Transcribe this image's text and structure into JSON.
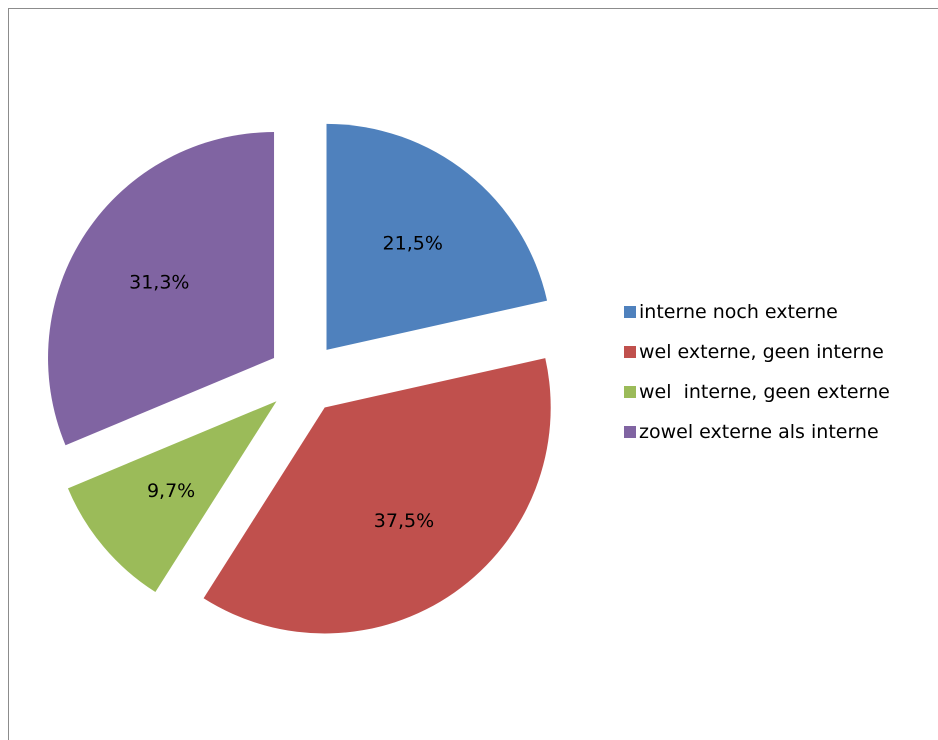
{
  "chart_data": {
    "type": "pie",
    "exploded": true,
    "legend_position": "right",
    "slices": [
      {
        "name": "interne noch externe",
        "value": 21.5,
        "label": "21,5%",
        "color": "#4F81BD"
      },
      {
        "name": "wel externe, geen interne",
        "value": 37.5,
        "label": "37,5%",
        "color": "#C0504D"
      },
      {
        "name": "wel  interne, geen externe",
        "value": 9.7,
        "label": "9,7%",
        "color": "#9BBB59"
      },
      {
        "name": "zowel externe als interne",
        "value": 31.3,
        "label": "31,3%",
        "color": "#8064A2"
      }
    ]
  }
}
